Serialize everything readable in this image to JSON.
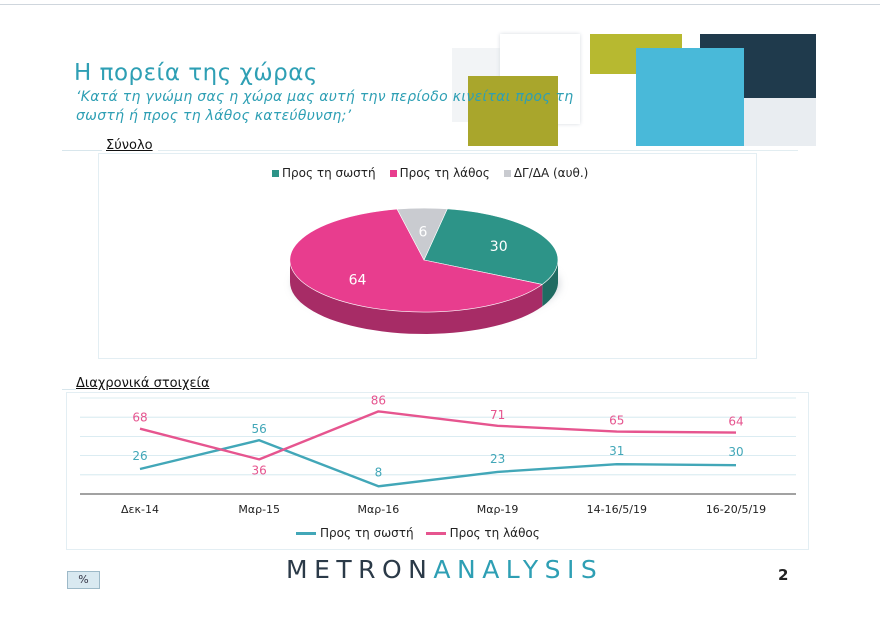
{
  "header": {
    "title": "Η πορεία της χώρας",
    "subtitle": "‘Κατά τη γνώμη σας η χώρα μας αυτή την περίοδο κινείται προς τη σωστή ή προς τη λάθος κατεύθυνση;’"
  },
  "sections": {
    "total": "Σύνολο",
    "trend": "Διαχρονικά στοιχεία"
  },
  "colors": {
    "accent": "#2e9fb4",
    "correct": "#2d9488",
    "wrong": "#e83d8e",
    "dk": "#c9cbd0",
    "line_correct": "#42a7b8",
    "line_wrong": "#e6558f"
  },
  "chart_data": [
    {
      "type": "pie",
      "title": "Σύνολο",
      "legend_position": "top",
      "labels": [
        "Προς τη σωστή",
        "Προς τη λάθος",
        "ΔΓ/ΔΑ (αυθ.)"
      ],
      "values": [
        30,
        64,
        6
      ]
    },
    {
      "type": "line",
      "title": "Διαχρονικά στοιχεία",
      "legend_position": "bottom",
      "categories": [
        "Δεκ-14",
        "Μαρ-15",
        "Μαρ-16",
        "Μαρ-19",
        "14-16/5/19",
        "16-20/5/19"
      ],
      "series": [
        {
          "name": "Προς τη σωστή",
          "values": [
            26,
            56,
            8,
            23,
            31,
            30
          ]
        },
        {
          "name": "Προς τη λάθος",
          "values": [
            68,
            36,
            86,
            71,
            65,
            64
          ]
        }
      ],
      "ylim": [
        0,
        100
      ],
      "grid": true
    }
  ],
  "footer": {
    "logo_part1": "METRON",
    "logo_part2": "ANALYSIS",
    "badge": "%",
    "page_number": "2"
  }
}
